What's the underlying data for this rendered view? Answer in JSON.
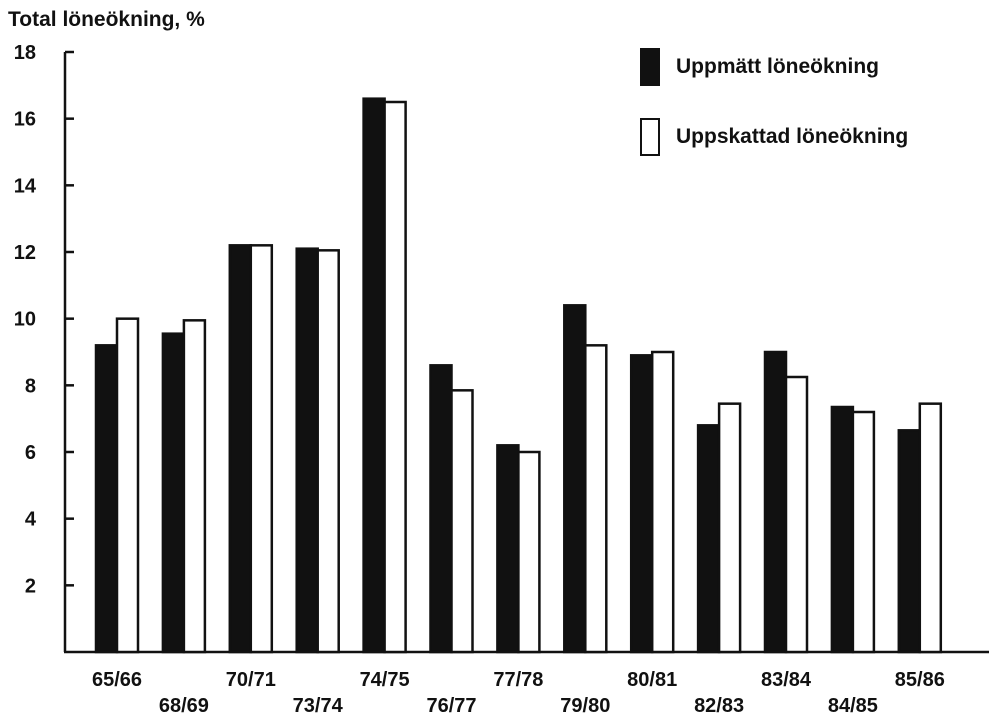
{
  "chart_data": {
    "type": "bar",
    "ylabel": "Total löneökning, %",
    "ylim": [
      0,
      18
    ],
    "yticks": [
      2,
      4,
      6,
      8,
      10,
      12,
      14,
      16,
      18
    ],
    "categories": [
      "65/66",
      "68/69",
      "70/71",
      "73/74",
      "74/75",
      "76/77",
      "77/78",
      "79/80",
      "80/81",
      "82/83",
      "83/84",
      "84/85",
      "85/86"
    ],
    "series": [
      {
        "name": "Uppmätt löneökning",
        "fill": "#111111",
        "values": [
          9.2,
          9.55,
          12.2,
          12.1,
          16.6,
          8.6,
          6.2,
          10.4,
          8.9,
          6.8,
          9.0,
          7.35,
          6.65
        ]
      },
      {
        "name": "Uppskattad löneökning",
        "fill": "#ffffff",
        "values": [
          10.0,
          9.95,
          12.2,
          12.05,
          16.5,
          7.85,
          6.0,
          9.2,
          9.0,
          7.45,
          8.25,
          7.2,
          7.45
        ]
      }
    ],
    "grid": false,
    "legend_position": "top-right"
  }
}
